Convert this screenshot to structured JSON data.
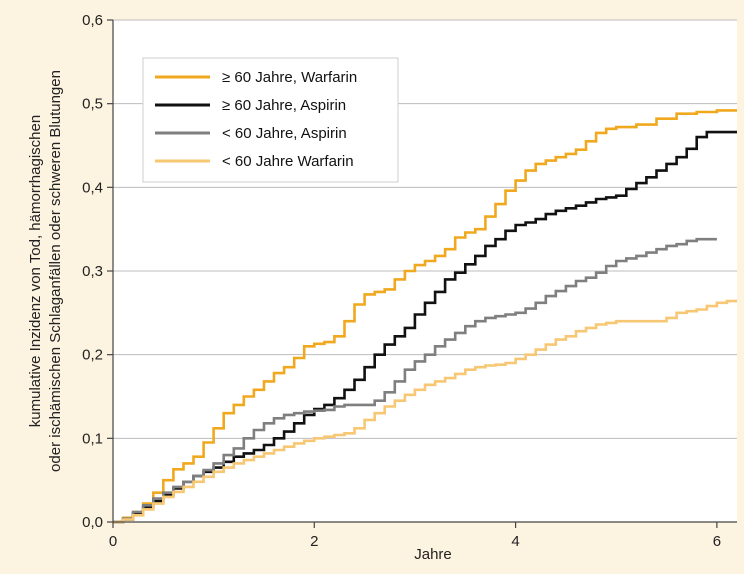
{
  "chart_data": {
    "type": "line",
    "step": true,
    "title": "",
    "xlabel": "Jahre",
    "ylabel": [
      "kumulative Inzidenz von Tod, hämorrhagischen",
      "oder ischämischen Schlaganfällen oder schweren Blutungen"
    ],
    "xlim": [
      0,
      6.2
    ],
    "ylim": [
      0,
      0.6
    ],
    "xticks": [
      0,
      2,
      4,
      6
    ],
    "xtick_labels": [
      "0",
      "2",
      "4",
      "6"
    ],
    "yticks": [
      0,
      0.1,
      0.2,
      0.3,
      0.4,
      0.5,
      0.6
    ],
    "ytick_labels": [
      "0,0",
      "0,1",
      "0,2",
      "0,3",
      "0,4",
      "0,5",
      "0,6"
    ],
    "grid": "horizontal",
    "legend_position": "top-left",
    "series": [
      {
        "name": "≥ 60 Jahre, Warfarin",
        "color": "#f0a81e",
        "points": [
          [
            0,
            0
          ],
          [
            0.1,
            0.005
          ],
          [
            0.2,
            0.012
          ],
          [
            0.3,
            0.022
          ],
          [
            0.4,
            0.035
          ],
          [
            0.5,
            0.05
          ],
          [
            0.6,
            0.063
          ],
          [
            0.7,
            0.07
          ],
          [
            0.8,
            0.078
          ],
          [
            0.9,
            0.095
          ],
          [
            1.0,
            0.112
          ],
          [
            1.1,
            0.13
          ],
          [
            1.2,
            0.14
          ],
          [
            1.3,
            0.15
          ],
          [
            1.4,
            0.158
          ],
          [
            1.5,
            0.168
          ],
          [
            1.6,
            0.178
          ],
          [
            1.7,
            0.185
          ],
          [
            1.8,
            0.196
          ],
          [
            1.9,
            0.21
          ],
          [
            2.0,
            0.213
          ],
          [
            2.1,
            0.215
          ],
          [
            2.2,
            0.222
          ],
          [
            2.3,
            0.24
          ],
          [
            2.4,
            0.26
          ],
          [
            2.5,
            0.272
          ],
          [
            2.6,
            0.275
          ],
          [
            2.7,
            0.278
          ],
          [
            2.8,
            0.29
          ],
          [
            2.9,
            0.3
          ],
          [
            3.0,
            0.307
          ],
          [
            3.1,
            0.312
          ],
          [
            3.2,
            0.318
          ],
          [
            3.3,
            0.326
          ],
          [
            3.4,
            0.34
          ],
          [
            3.5,
            0.346
          ],
          [
            3.6,
            0.35
          ],
          [
            3.7,
            0.365
          ],
          [
            3.8,
            0.38
          ],
          [
            3.9,
            0.396
          ],
          [
            4.0,
            0.408
          ],
          [
            4.1,
            0.42
          ],
          [
            4.2,
            0.428
          ],
          [
            4.3,
            0.432
          ],
          [
            4.4,
            0.436
          ],
          [
            4.5,
            0.44
          ],
          [
            4.6,
            0.445
          ],
          [
            4.7,
            0.455
          ],
          [
            4.8,
            0.465
          ],
          [
            4.9,
            0.47
          ],
          [
            5.0,
            0.472
          ],
          [
            5.2,
            0.475
          ],
          [
            5.4,
            0.482
          ],
          [
            5.6,
            0.488
          ],
          [
            5.8,
            0.49
          ],
          [
            6.0,
            0.492
          ],
          [
            6.2,
            0.492
          ]
        ]
      },
      {
        "name": "≥ 60 Jahre, Aspirin",
        "color": "#111111",
        "points": [
          [
            0,
            0
          ],
          [
            0.1,
            0.003
          ],
          [
            0.2,
            0.01
          ],
          [
            0.3,
            0.018
          ],
          [
            0.4,
            0.025
          ],
          [
            0.5,
            0.032
          ],
          [
            0.6,
            0.04
          ],
          [
            0.7,
            0.048
          ],
          [
            0.8,
            0.055
          ],
          [
            0.9,
            0.06
          ],
          [
            1.0,
            0.065
          ],
          [
            1.1,
            0.072
          ],
          [
            1.2,
            0.078
          ],
          [
            1.3,
            0.082
          ],
          [
            1.4,
            0.086
          ],
          [
            1.5,
            0.092
          ],
          [
            1.6,
            0.1
          ],
          [
            1.7,
            0.108
          ],
          [
            1.8,
            0.118
          ],
          [
            1.9,
            0.128
          ],
          [
            2.0,
            0.135
          ],
          [
            2.1,
            0.14
          ],
          [
            2.2,
            0.148
          ],
          [
            2.3,
            0.158
          ],
          [
            2.4,
            0.17
          ],
          [
            2.5,
            0.185
          ],
          [
            2.6,
            0.2
          ],
          [
            2.7,
            0.212
          ],
          [
            2.8,
            0.222
          ],
          [
            2.9,
            0.232
          ],
          [
            3.0,
            0.248
          ],
          [
            3.1,
            0.262
          ],
          [
            3.2,
            0.275
          ],
          [
            3.3,
            0.29
          ],
          [
            3.4,
            0.298
          ],
          [
            3.5,
            0.308
          ],
          [
            3.6,
            0.318
          ],
          [
            3.7,
            0.33
          ],
          [
            3.8,
            0.338
          ],
          [
            3.9,
            0.348
          ],
          [
            4.0,
            0.355
          ],
          [
            4.1,
            0.358
          ],
          [
            4.2,
            0.362
          ],
          [
            4.3,
            0.368
          ],
          [
            4.4,
            0.372
          ],
          [
            4.5,
            0.375
          ],
          [
            4.6,
            0.378
          ],
          [
            4.7,
            0.382
          ],
          [
            4.8,
            0.386
          ],
          [
            4.9,
            0.388
          ],
          [
            5.0,
            0.39
          ],
          [
            5.1,
            0.398
          ],
          [
            5.2,
            0.405
          ],
          [
            5.3,
            0.412
          ],
          [
            5.4,
            0.42
          ],
          [
            5.5,
            0.428
          ],
          [
            5.6,
            0.436
          ],
          [
            5.7,
            0.446
          ],
          [
            5.8,
            0.46
          ],
          [
            5.9,
            0.466
          ],
          [
            6.0,
            0.466
          ],
          [
            6.2,
            0.466
          ]
        ]
      },
      {
        "name": "< 60 Jahre, Aspirin",
        "color": "#7f7f7f",
        "points": [
          [
            0,
            0
          ],
          [
            0.1,
            0.004
          ],
          [
            0.2,
            0.012
          ],
          [
            0.3,
            0.02
          ],
          [
            0.4,
            0.028
          ],
          [
            0.5,
            0.035
          ],
          [
            0.6,
            0.042
          ],
          [
            0.7,
            0.048
          ],
          [
            0.8,
            0.055
          ],
          [
            0.9,
            0.062
          ],
          [
            1.0,
            0.07
          ],
          [
            1.1,
            0.08
          ],
          [
            1.2,
            0.088
          ],
          [
            1.3,
            0.1
          ],
          [
            1.4,
            0.11
          ],
          [
            1.5,
            0.118
          ],
          [
            1.6,
            0.124
          ],
          [
            1.7,
            0.128
          ],
          [
            1.8,
            0.13
          ],
          [
            1.9,
            0.132
          ],
          [
            2.0,
            0.133
          ],
          [
            2.1,
            0.134
          ],
          [
            2.2,
            0.138
          ],
          [
            2.3,
            0.14
          ],
          [
            2.4,
            0.14
          ],
          [
            2.5,
            0.14
          ],
          [
            2.6,
            0.145
          ],
          [
            2.7,
            0.155
          ],
          [
            2.8,
            0.168
          ],
          [
            2.9,
            0.182
          ],
          [
            3.0,
            0.192
          ],
          [
            3.1,
            0.2
          ],
          [
            3.2,
            0.21
          ],
          [
            3.3,
            0.218
          ],
          [
            3.4,
            0.226
          ],
          [
            3.5,
            0.234
          ],
          [
            3.6,
            0.24
          ],
          [
            3.7,
            0.244
          ],
          [
            3.8,
            0.246
          ],
          [
            3.9,
            0.248
          ],
          [
            4.0,
            0.25
          ],
          [
            4.1,
            0.255
          ],
          [
            4.2,
            0.262
          ],
          [
            4.3,
            0.27
          ],
          [
            4.4,
            0.276
          ],
          [
            4.5,
            0.282
          ],
          [
            4.6,
            0.288
          ],
          [
            4.7,
            0.292
          ],
          [
            4.8,
            0.298
          ],
          [
            4.9,
            0.306
          ],
          [
            5.0,
            0.312
          ],
          [
            5.1,
            0.315
          ],
          [
            5.2,
            0.318
          ],
          [
            5.3,
            0.322
          ],
          [
            5.4,
            0.326
          ],
          [
            5.5,
            0.33
          ],
          [
            5.6,
            0.332
          ],
          [
            5.7,
            0.336
          ],
          [
            5.8,
            0.338
          ],
          [
            5.9,
            0.338
          ],
          [
            6.0,
            0.338
          ]
        ]
      },
      {
        "name": "< 60 Jahre Warfarin",
        "color": "#f7c774",
        "points": [
          [
            0,
            0
          ],
          [
            0.1,
            0.003
          ],
          [
            0.2,
            0.008
          ],
          [
            0.3,
            0.015
          ],
          [
            0.4,
            0.022
          ],
          [
            0.5,
            0.03
          ],
          [
            0.6,
            0.036
          ],
          [
            0.7,
            0.042
          ],
          [
            0.8,
            0.048
          ],
          [
            0.9,
            0.054
          ],
          [
            1.0,
            0.06
          ],
          [
            1.1,
            0.065
          ],
          [
            1.2,
            0.07
          ],
          [
            1.3,
            0.074
          ],
          [
            1.4,
            0.078
          ],
          [
            1.5,
            0.082
          ],
          [
            1.6,
            0.086
          ],
          [
            1.7,
            0.09
          ],
          [
            1.8,
            0.094
          ],
          [
            1.9,
            0.097
          ],
          [
            2.0,
            0.1
          ],
          [
            2.1,
            0.102
          ],
          [
            2.2,
            0.104
          ],
          [
            2.3,
            0.106
          ],
          [
            2.4,
            0.112
          ],
          [
            2.5,
            0.122
          ],
          [
            2.6,
            0.13
          ],
          [
            2.7,
            0.138
          ],
          [
            2.8,
            0.145
          ],
          [
            2.9,
            0.152
          ],
          [
            3.0,
            0.158
          ],
          [
            3.1,
            0.164
          ],
          [
            3.2,
            0.168
          ],
          [
            3.3,
            0.172
          ],
          [
            3.4,
            0.177
          ],
          [
            3.5,
            0.182
          ],
          [
            3.6,
            0.185
          ],
          [
            3.7,
            0.187
          ],
          [
            3.8,
            0.188
          ],
          [
            3.9,
            0.19
          ],
          [
            4.0,
            0.195
          ],
          [
            4.1,
            0.2
          ],
          [
            4.2,
            0.206
          ],
          [
            4.3,
            0.212
          ],
          [
            4.4,
            0.218
          ],
          [
            4.5,
            0.222
          ],
          [
            4.6,
            0.228
          ],
          [
            4.7,
            0.232
          ],
          [
            4.8,
            0.236
          ],
          [
            4.9,
            0.238
          ],
          [
            5.0,
            0.24
          ],
          [
            5.2,
            0.24
          ],
          [
            5.4,
            0.24
          ],
          [
            5.5,
            0.244
          ],
          [
            5.6,
            0.25
          ],
          [
            5.7,
            0.252
          ],
          [
            5.8,
            0.254
          ],
          [
            5.9,
            0.258
          ],
          [
            6.0,
            0.262
          ],
          [
            6.1,
            0.264
          ],
          [
            6.2,
            0.264
          ]
        ]
      }
    ]
  }
}
